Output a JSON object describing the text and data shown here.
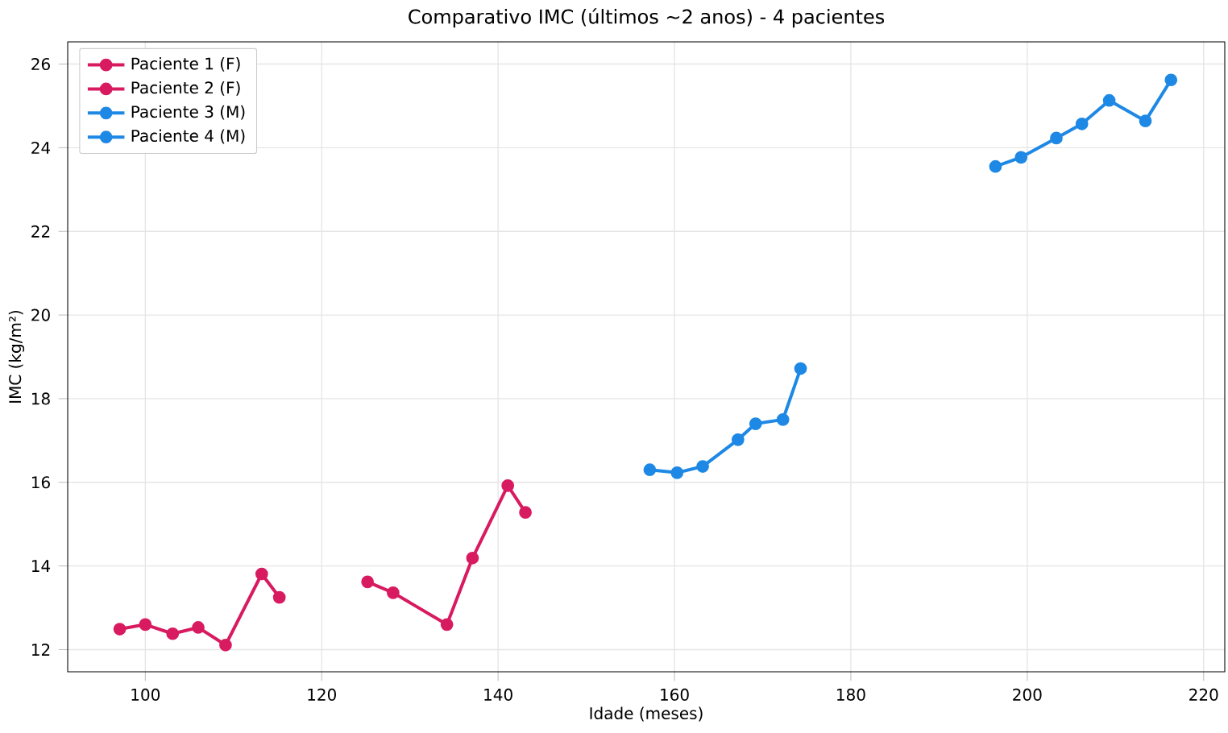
{
  "chart_data": {
    "type": "line",
    "title": "Comparativo IMC (últimos ~2 anos) - 4 pacientes",
    "xlabel": "Idade (meses)",
    "ylabel": "IMC (kg/m²)",
    "xlim": [
      91.2,
      222.4
    ],
    "ylim": [
      11.47,
      26.53
    ],
    "xticks": [
      100,
      120,
      140,
      160,
      180,
      200,
      220
    ],
    "yticks": [
      12,
      14,
      16,
      18,
      20,
      22,
      24,
      26
    ],
    "grid": true,
    "legend": "top left",
    "marker": "circle",
    "line_style": "solid",
    "series": [
      {
        "name": "Paciente 1 (F)",
        "color": "#d81b60",
        "x": [
          97.1,
          100,
          103.1,
          106,
          109.1,
          113.2,
          115.2
        ],
        "values": [
          12.49,
          12.6,
          12.38,
          12.53,
          12.11,
          13.81,
          13.25
        ]
      },
      {
        "name": "Paciente 2 (F)",
        "color": "#d81b60",
        "x": [
          125.2,
          128.1,
          134.2,
          137.1,
          141.1,
          143.1
        ],
        "values": [
          13.62,
          13.36,
          12.6,
          14.19,
          15.92,
          15.28
        ]
      },
      {
        "name": "Paciente 3 (M)",
        "color": "#1e88e5",
        "x": [
          157.2,
          160.3,
          163.2,
          167.2,
          169.2,
          172.3,
          174.3
        ],
        "values": [
          16.3,
          16.23,
          16.38,
          17.02,
          17.4,
          17.5,
          18.72
        ]
      },
      {
        "name": "Paciente 4 (M)",
        "color": "#1e88e5",
        "x": [
          196.4,
          199.3,
          203.3,
          206.2,
          209.3,
          213.4,
          216.3
        ],
        "values": [
          23.55,
          23.77,
          24.23,
          24.57,
          25.13,
          24.64,
          25.62
        ]
      }
    ]
  }
}
